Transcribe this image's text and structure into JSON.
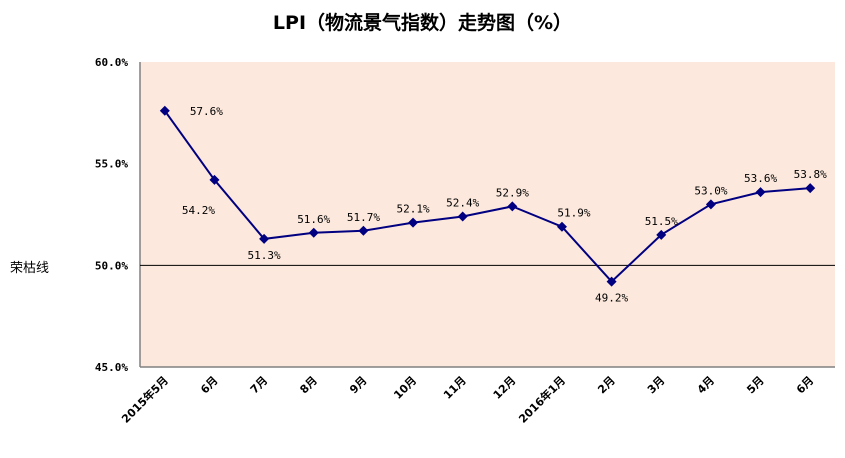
{
  "chart_data": {
    "type": "line",
    "title": "LPI（物流景气指数）走势图（%）",
    "categories": [
      "2015年5月",
      "6月",
      "7月",
      "8月",
      "9月",
      "10月",
      "11月",
      "12月",
      "2016年1月",
      "2月",
      "3月",
      "4月",
      "5月",
      "6月"
    ],
    "series": [
      {
        "values": [
          57.6,
          54.2,
          51.3,
          51.6,
          51.7,
          52.1,
          52.4,
          52.9,
          51.9,
          49.2,
          51.5,
          53.0,
          53.6,
          53.8
        ],
        "color": "#000080"
      }
    ],
    "data_labels": [
      "57.6%",
      "54.2%",
      "51.3%",
      "51.6%",
      "51.7%",
      "52.1%",
      "52.4%",
      "52.9%",
      "51.9%",
      "49.2%",
      "51.5%",
      "53.0%",
      "53.6%",
      "53.8%"
    ],
    "ylim": [
      45,
      60
    ],
    "yticks": [
      45,
      50,
      55,
      60
    ],
    "ytick_labels": [
      "45.0%",
      "50.0%",
      "55.0%",
      "60.0%"
    ],
    "reference_line": {
      "value": 50,
      "label": "荣枯线"
    },
    "plot_background": "#fce8dc",
    "grid": false,
    "xlabel": "",
    "ylabel": ""
  }
}
